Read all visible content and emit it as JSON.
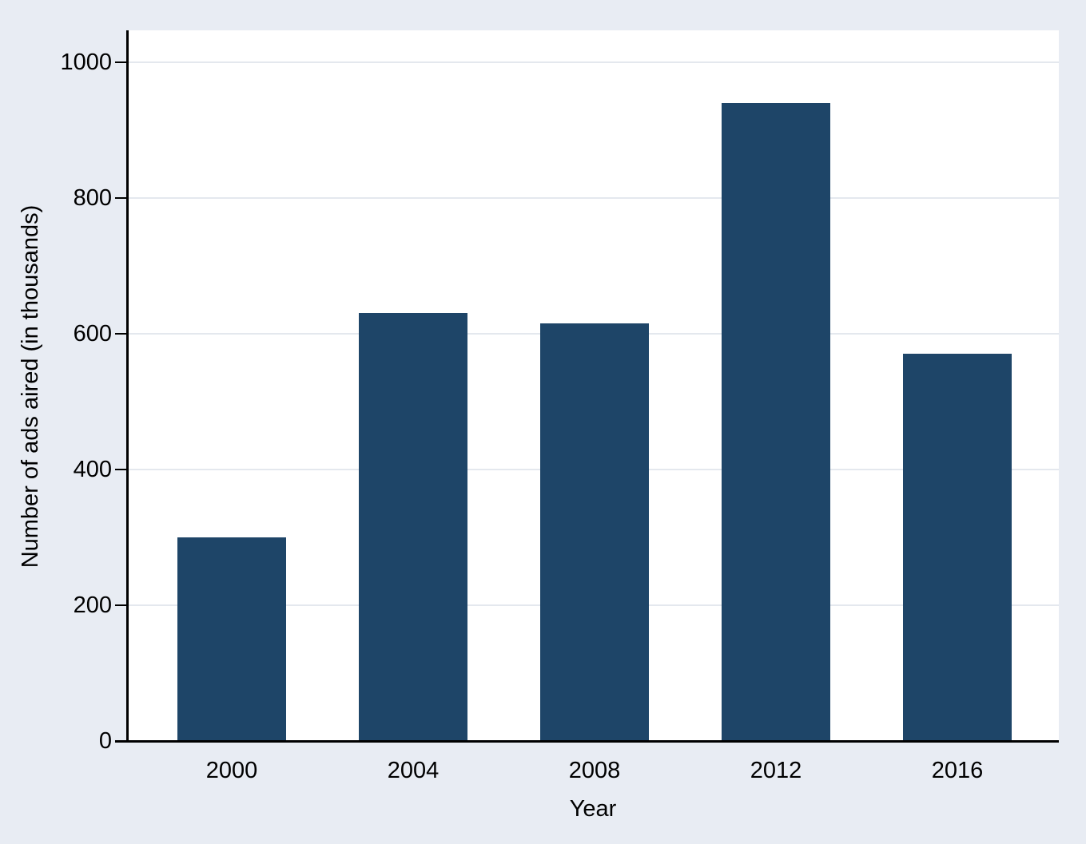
{
  "chart_data": {
    "type": "bar",
    "title": "",
    "categories": [
      "2000",
      "2004",
      "2008",
      "2012",
      "2016"
    ],
    "values": [
      300,
      630,
      615,
      940,
      570
    ],
    "xlabel": "Year",
    "ylabel": "Number of ads aired (in thousands)",
    "yticks": [
      0,
      200,
      400,
      600,
      800,
      1000
    ],
    "ylim": [
      0,
      1047
    ],
    "grid": true,
    "legend_position": "none",
    "colors": {
      "bar": "#1e4568",
      "figure_background": "#e8ecf3",
      "plot_background": "#ffffff",
      "gridline": "#e4e8ee",
      "axis": "#000000",
      "text": "#000000"
    }
  }
}
